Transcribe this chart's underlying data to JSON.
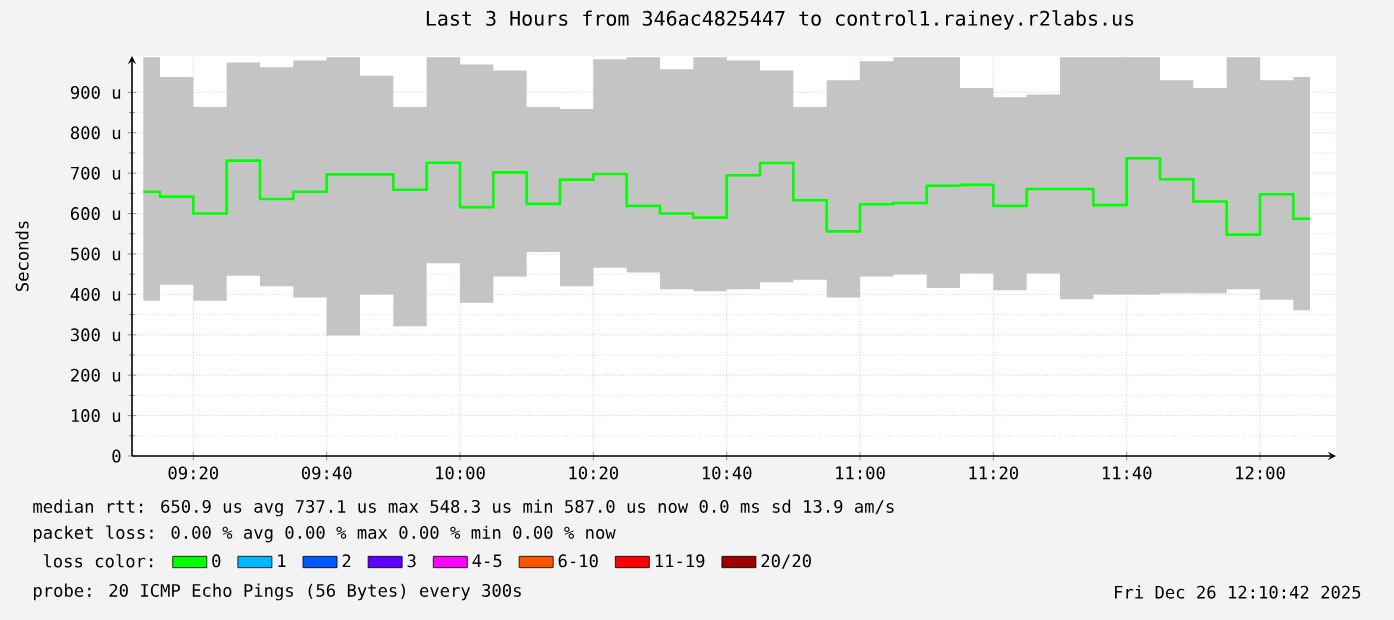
{
  "chart_data": {
    "type": "step",
    "title": "Last 3 Hours from 346ac4825447 to control1.rainey.r2labs.us",
    "ylabel": "Seconds",
    "legend_title": "loss color:",
    "legend": "bottom",
    "grid": true,
    "x": [
      9.2083,
      9.2917,
      9.375,
      9.4583,
      9.5417,
      9.625,
      9.7083,
      9.7917,
      9.875,
      9.9583,
      10.0417,
      10.125,
      10.2083,
      10.2917,
      10.375,
      10.4583,
      10.5417,
      10.625,
      10.7083,
      10.7917,
      10.875,
      10.9583,
      11.0417,
      11.125,
      11.2083,
      11.2917,
      11.375,
      11.4583,
      11.5417,
      11.625,
      11.7083,
      11.7917,
      11.875,
      11.9583,
      12.0417,
      12.125
    ],
    "xlim": [
      9.18,
      12.19
    ],
    "xticks": [
      {
        "value": 9.3333,
        "label": "09:20"
      },
      {
        "value": 9.6667,
        "label": "09:40"
      },
      {
        "value": 10,
        "label": "10:00"
      },
      {
        "value": 10.3333,
        "label": "10:20"
      },
      {
        "value": 10.6667,
        "label": "10:40"
      },
      {
        "value": 11,
        "label": "11:00"
      },
      {
        "value": 11.3333,
        "label": "11:20"
      },
      {
        "value": 11.6667,
        "label": "11:40"
      },
      {
        "value": 12,
        "label": "12:00"
      }
    ],
    "ylim": [
      0,
      990
    ],
    "yticks": [
      0,
      {
        "value": 100,
        "label": "100 u"
      },
      {
        "value": 200,
        "label": "200 u"
      },
      {
        "value": 300,
        "label": "300 u"
      },
      {
        "value": 400,
        "label": "400 u"
      },
      {
        "value": 500,
        "label": "500 u"
      },
      {
        "value": 600,
        "label": "600 u"
      },
      {
        "value": 700,
        "label": "700 u"
      },
      {
        "value": 800,
        "label": "800 u"
      },
      {
        "value": 900,
        "label": "900 u"
      }
    ],
    "series": [
      {
        "name": "0",
        "color": "#00ff00",
        "values": [
          654,
          642,
          600,
          731,
          636,
          654,
          697,
          697,
          659,
          726,
          616,
          702,
          624,
          684,
          698,
          619,
          600,
          590,
          695,
          725,
          633,
          556,
          623,
          626,
          669,
          671,
          619,
          661,
          661,
          621,
          737,
          685,
          630,
          548,
          648,
          587
        ],
        "upper": [
          987,
          938,
          864,
          974,
          962,
          979,
          987,
          941,
          864,
          987,
          969,
          954,
          864,
          859,
          982,
          987,
          957,
          987,
          979,
          954,
          864,
          930,
          977,
          987,
          987,
          911,
          888,
          895,
          987,
          987,
          987,
          930,
          911,
          987,
          930,
          938
        ],
        "lower": [
          384,
          424,
          384,
          446,
          420,
          392,
          298,
          400,
          321,
          477,
          379,
          444,
          505,
          420,
          466,
          454,
          413,
          408,
          413,
          430,
          436,
          392,
          444,
          449,
          416,
          452,
          410,
          452,
          388,
          400,
          400,
          403,
          403,
          413,
          387,
          361
        ]
      },
      {
        "name": "1",
        "color": "#00b8ff",
        "values": [
          null,
          null,
          null,
          null,
          null,
          null,
          null,
          null,
          null,
          null,
          null,
          null,
          null,
          null,
          null,
          null,
          null,
          null,
          null,
          null,
          null,
          null,
          null,
          null,
          null,
          null,
          null,
          null,
          null,
          null,
          null,
          null,
          null,
          null,
          null,
          null
        ]
      },
      {
        "name": "2",
        "color": "#0059ff",
        "values": [
          null,
          null,
          null,
          null,
          null,
          null,
          null,
          null,
          null,
          null,
          null,
          null,
          null,
          null,
          null,
          null,
          null,
          null,
          null,
          null,
          null,
          null,
          null,
          null,
          null,
          null,
          null,
          null,
          null,
          null,
          null,
          null,
          null,
          null,
          null,
          null
        ]
      },
      {
        "name": "3",
        "color": "#5e00ff",
        "values": [
          null,
          null,
          null,
          null,
          null,
          null,
          null,
          null,
          null,
          null,
          null,
          null,
          null,
          null,
          null,
          null,
          null,
          null,
          null,
          null,
          null,
          null,
          null,
          null,
          null,
          null,
          null,
          null,
          null,
          null,
          null,
          null,
          null,
          null,
          null,
          null
        ]
      },
      {
        "name": "4-5",
        "color": "#ff00ff",
        "values": [
          null,
          null,
          null,
          null,
          null,
          null,
          null,
          null,
          null,
          null,
          null,
          null,
          null,
          null,
          null,
          null,
          null,
          null,
          null,
          null,
          null,
          null,
          null,
          null,
          null,
          null,
          null,
          null,
          null,
          null,
          null,
          null,
          null,
          null,
          null,
          null
        ]
      },
      {
        "name": "6-10",
        "color": "#ff5500",
        "values": [
          null,
          null,
          null,
          null,
          null,
          null,
          null,
          null,
          null,
          null,
          null,
          null,
          null,
          null,
          null,
          null,
          null,
          null,
          null,
          null,
          null,
          null,
          null,
          null,
          null,
          null,
          null,
          null,
          null,
          null,
          null,
          null,
          null,
          null,
          null,
          null
        ]
      },
      {
        "name": "11-19",
        "color": "#ff0000",
        "values": [
          null,
          null,
          null,
          null,
          null,
          null,
          null,
          null,
          null,
          null,
          null,
          null,
          null,
          null,
          null,
          null,
          null,
          null,
          null,
          null,
          null,
          null,
          null,
          null,
          null,
          null,
          null,
          null,
          null,
          null,
          null,
          null,
          null,
          null,
          null,
          null
        ]
      },
      {
        "name": "20/20",
        "color": "#a10000",
        "values": [
          null,
          null,
          null,
          null,
          null,
          null,
          null,
          null,
          null,
          null,
          null,
          null,
          null,
          null,
          null,
          null,
          null,
          null,
          null,
          null,
          null,
          null,
          null,
          null,
          null,
          null,
          null,
          null,
          null,
          null,
          null,
          null,
          null,
          null,
          null,
          null
        ]
      }
    ],
    "annotations": [
      "median rtt:  650.9 us avg  737.1 us max  548.3 us min  587.0 us now  0.0 ms sd  13.9  am/s",
      "packet loss: 0.00 % avg  0.00 % max  0.00 % min  0.00 % now",
      "probe:       20 ICMP Echo Pings (56 Bytes) every 300s",
      "Fri Dec 26 12:10:42 2025"
    ]
  }
}
